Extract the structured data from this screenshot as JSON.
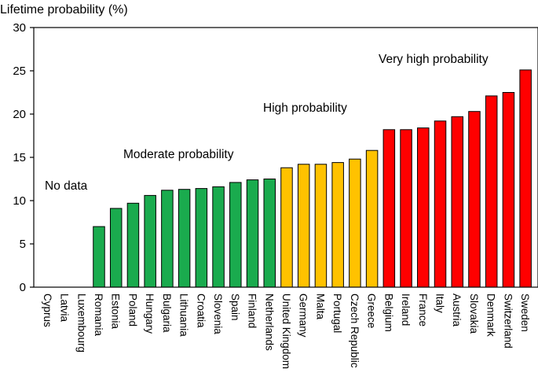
{
  "chart_data": {
    "type": "bar",
    "title": "",
    "ylabel": "Lifetime probability (%)",
    "xlabel": "",
    "ylim": [
      0,
      30
    ],
    "yticks": [
      0,
      5,
      10,
      15,
      20,
      25,
      30
    ],
    "grid": false,
    "categories": [
      "Cyprus",
      "Latvia",
      "Luxembourg",
      "Romania",
      "Estonia",
      "Poland",
      "Hungary",
      "Bulgaria",
      "Lithuania",
      "Croatia",
      "Slovenia",
      "Spain",
      "Finland",
      "Netherlands",
      "United Kingdom",
      "Germany",
      "Malta",
      "Portugal",
      "Czech Republic",
      "Greece",
      "Belgium",
      "Ireland",
      "France",
      "Italy",
      "Austria",
      "Slovakia",
      "Denmark",
      "Switzerland",
      "Sweden"
    ],
    "values": [
      null,
      null,
      null,
      7.0,
      9.1,
      9.7,
      10.6,
      11.2,
      11.3,
      11.4,
      11.6,
      12.1,
      12.4,
      12.5,
      13.8,
      14.2,
      14.2,
      14.4,
      14.8,
      15.8,
      18.2,
      18.2,
      18.4,
      19.2,
      19.7,
      20.3,
      22.1,
      22.5,
      25.1
    ],
    "groups": [
      "none",
      "none",
      "none",
      "moderate",
      "moderate",
      "moderate",
      "moderate",
      "moderate",
      "moderate",
      "moderate",
      "moderate",
      "moderate",
      "moderate",
      "moderate",
      "high",
      "high",
      "high",
      "high",
      "high",
      "high",
      "very_high",
      "very_high",
      "very_high",
      "very_high",
      "very_high",
      "very_high",
      "very_high",
      "very_high",
      "very_high"
    ],
    "colors": {
      "moderate": "#1aab4e",
      "high": "#ffc200",
      "very_high": "#ff0000",
      "edge": "#000000"
    },
    "annotations": [
      {
        "id": "no-data",
        "text": "No data"
      },
      {
        "id": "moderate",
        "text": "Moderate probability"
      },
      {
        "id": "high",
        "text": "High probability"
      },
      {
        "id": "very-high",
        "text": "Very high probability"
      }
    ]
  }
}
